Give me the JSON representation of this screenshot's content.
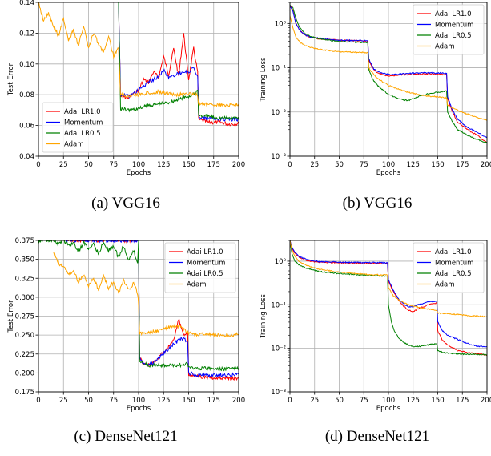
{
  "chart_data": [
    {
      "type": "line",
      "caption": "(a) VGG16",
      "xlabel": "Epochs",
      "ylabel": "Test Error",
      "xlim": [
        0,
        200
      ],
      "ylim": [
        0.04,
        0.14
      ],
      "yscale": "linear",
      "xticks": [
        "0",
        "25",
        "50",
        "75",
        "100",
        "125",
        "150",
        "175",
        "200"
      ],
      "yticks": [
        "0.04",
        "0.06",
        "0.08",
        "0.10",
        "0.12",
        "0.14"
      ],
      "grid": true,
      "legend_position": "lower-left",
      "series": [
        {
          "name": "Adai LR1.0",
          "color": "#ff0000",
          "x": [
            80,
            82,
            90,
            100,
            105,
            110,
            115,
            120,
            125,
            130,
            135,
            140,
            145,
            150,
            155,
            159,
            160,
            165,
            170,
            180,
            190,
            200
          ],
          "y": [
            0.14,
            0.079,
            0.078,
            0.083,
            0.09,
            0.088,
            0.095,
            0.091,
            0.105,
            0.093,
            0.11,
            0.092,
            0.12,
            0.09,
            0.11,
            0.095,
            0.064,
            0.063,
            0.062,
            0.062,
            0.061,
            0.061
          ]
        },
        {
          "name": "Momentum",
          "color": "#0000ff",
          "x": [
            80,
            82,
            90,
            100,
            110,
            120,
            125,
            130,
            140,
            150,
            155,
            159,
            160,
            165,
            170,
            180,
            190,
            200
          ],
          "y": [
            0.14,
            0.08,
            0.079,
            0.083,
            0.088,
            0.092,
            0.096,
            0.091,
            0.094,
            0.095,
            0.097,
            0.092,
            0.066,
            0.065,
            0.065,
            0.064,
            0.064,
            0.064
          ]
        },
        {
          "name": "Adai LR0.5",
          "color": "#008000",
          "x": [
            80,
            82,
            90,
            100,
            110,
            120,
            130,
            140,
            150,
            155,
            159,
            160,
            165,
            170,
            180,
            190,
            200
          ],
          "y": [
            0.14,
            0.071,
            0.07,
            0.071,
            0.073,
            0.074,
            0.075,
            0.077,
            0.079,
            0.08,
            0.083,
            0.067,
            0.066,
            0.066,
            0.065,
            0.065,
            0.065
          ]
        },
        {
          "name": "Adam",
          "color": "#ffa500",
          "x": [
            0,
            5,
            10,
            15,
            20,
            25,
            30,
            35,
            40,
            45,
            50,
            55,
            60,
            65,
            70,
            75,
            80,
            82,
            90,
            100,
            110,
            120,
            130,
            140,
            150,
            159,
            160,
            170,
            180,
            190,
            200
          ],
          "y": [
            0.14,
            0.128,
            0.133,
            0.125,
            0.118,
            0.13,
            0.115,
            0.122,
            0.112,
            0.125,
            0.11,
            0.12,
            0.113,
            0.108,
            0.118,
            0.105,
            0.11,
            0.08,
            0.079,
            0.08,
            0.081,
            0.082,
            0.081,
            0.08,
            0.081,
            0.08,
            0.074,
            0.074,
            0.073,
            0.073,
            0.074
          ]
        }
      ]
    },
    {
      "type": "line",
      "caption": "(b) VGG16",
      "xlabel": "Epochs",
      "ylabel": "Training Loss",
      "xlim": [
        0,
        200
      ],
      "ylim": [
        0.001,
        3
      ],
      "yscale": "log",
      "xticks": [
        "0",
        "25",
        "50",
        "75",
        "100",
        "125",
        "150",
        "175",
        "200"
      ],
      "yticks": [
        "10⁻³",
        "10⁻²",
        "10⁻¹",
        "10⁰"
      ],
      "grid": true,
      "legend_position": "top-right",
      "series": [
        {
          "name": "Adai LR1.0",
          "color": "#ff0000",
          "x": [
            0,
            3,
            6,
            10,
            15,
            20,
            30,
            50,
            79,
            80,
            85,
            90,
            100,
            110,
            120,
            130,
            140,
            150,
            159,
            160,
            165,
            170,
            180,
            190,
            200
          ],
          "y": [
            2.6,
            2.0,
            1.0,
            0.7,
            0.55,
            0.5,
            0.45,
            0.42,
            0.4,
            0.15,
            0.09,
            0.075,
            0.065,
            0.068,
            0.07,
            0.072,
            0.073,
            0.072,
            0.07,
            0.02,
            0.01,
            0.006,
            0.004,
            0.003,
            0.002
          ]
        },
        {
          "name": "Momentum",
          "color": "#0000ff",
          "x": [
            0,
            3,
            6,
            10,
            15,
            20,
            30,
            50,
            79,
            80,
            85,
            90,
            100,
            110,
            120,
            130,
            140,
            150,
            159,
            160,
            165,
            170,
            180,
            190,
            200
          ],
          "y": [
            2.5,
            1.9,
            1.0,
            0.7,
            0.55,
            0.5,
            0.46,
            0.42,
            0.41,
            0.16,
            0.095,
            0.08,
            0.07,
            0.072,
            0.075,
            0.076,
            0.077,
            0.076,
            0.075,
            0.022,
            0.011,
            0.007,
            0.0045,
            0.0035,
            0.0026
          ]
        },
        {
          "name": "Adai LR0.5",
          "color": "#008000",
          "x": [
            0,
            3,
            6,
            10,
            15,
            20,
            30,
            50,
            79,
            80,
            85,
            90,
            100,
            110,
            120,
            130,
            140,
            150,
            159,
            160,
            165,
            170,
            180,
            190,
            200
          ],
          "y": [
            2.6,
            2.3,
            1.3,
            0.8,
            0.6,
            0.52,
            0.45,
            0.39,
            0.37,
            0.09,
            0.05,
            0.038,
            0.025,
            0.02,
            0.018,
            0.022,
            0.026,
            0.028,
            0.03,
            0.01,
            0.006,
            0.004,
            0.003,
            0.0024,
            0.002
          ]
        },
        {
          "name": "Adam",
          "color": "#ffa500",
          "x": [
            0,
            3,
            6,
            10,
            15,
            20,
            30,
            50,
            79,
            80,
            85,
            90,
            100,
            110,
            120,
            130,
            140,
            150,
            159,
            160,
            170,
            180,
            190,
            200
          ],
          "y": [
            1.5,
            0.8,
            0.5,
            0.38,
            0.32,
            0.29,
            0.26,
            0.23,
            0.22,
            0.1,
            0.07,
            0.055,
            0.04,
            0.033,
            0.028,
            0.025,
            0.023,
            0.022,
            0.021,
            0.014,
            0.011,
            0.009,
            0.0075,
            0.0065
          ]
        }
      ]
    },
    {
      "type": "line",
      "caption": "(c) DenseNet121",
      "xlabel": "Epochs",
      "ylabel": "Test Error",
      "xlim": [
        0,
        200
      ],
      "ylim": [
        0.175,
        0.375
      ],
      "yscale": "linear",
      "xticks": [
        "0",
        "25",
        "50",
        "75",
        "100",
        "125",
        "150",
        "175",
        "200"
      ],
      "yticks": [
        "0.175",
        "0.200",
        "0.225",
        "0.250",
        "0.275",
        "0.300",
        "0.325",
        "0.350",
        "0.375"
      ],
      "grid": true,
      "legend_position": "top-right",
      "series": [
        {
          "name": "Adai LR1.0",
          "color": "#ff0000",
          "x": [
            28,
            100,
            101,
            105,
            110,
            115,
            120,
            125,
            130,
            135,
            140,
            145,
            149,
            150,
            155,
            160,
            170,
            180,
            190,
            200
          ],
          "y": [
            0.375,
            0.375,
            0.22,
            0.212,
            0.21,
            0.213,
            0.22,
            0.228,
            0.235,
            0.242,
            0.272,
            0.25,
            0.255,
            0.198,
            0.196,
            0.195,
            0.194,
            0.193,
            0.193,
            0.193
          ]
        },
        {
          "name": "Momentum",
          "color": "#0000ff",
          "x": [
            28,
            100,
            101,
            105,
            110,
            115,
            120,
            125,
            130,
            135,
            140,
            145,
            149,
            150,
            155,
            160,
            170,
            180,
            190,
            200
          ],
          "y": [
            0.375,
            0.375,
            0.222,
            0.212,
            0.21,
            0.214,
            0.22,
            0.226,
            0.232,
            0.238,
            0.243,
            0.246,
            0.24,
            0.2,
            0.198,
            0.197,
            0.197,
            0.197,
            0.197,
            0.198
          ]
        },
        {
          "name": "Adai LR0.5",
          "color": "#008000",
          "x": [
            0,
            15,
            20,
            25,
            30,
            35,
            40,
            45,
            50,
            55,
            60,
            65,
            70,
            75,
            80,
            85,
            90,
            95,
            99,
            100,
            101,
            110,
            120,
            130,
            140,
            149,
            150,
            160,
            170,
            180,
            190,
            200
          ],
          "y": [
            0.375,
            0.375,
            0.37,
            0.375,
            0.368,
            0.372,
            0.36,
            0.372,
            0.364,
            0.37,
            0.358,
            0.372,
            0.362,
            0.368,
            0.352,
            0.368,
            0.347,
            0.362,
            0.345,
            0.375,
            0.215,
            0.21,
            0.21,
            0.21,
            0.21,
            0.212,
            0.207,
            0.206,
            0.206,
            0.205,
            0.206,
            0.206
          ]
        },
        {
          "name": "Adam",
          "color": "#ffa500",
          "x": [
            15,
            20,
            25,
            30,
            35,
            40,
            45,
            50,
            55,
            60,
            65,
            70,
            75,
            80,
            85,
            90,
            95,
            99,
            100,
            101,
            110,
            120,
            130,
            140,
            150,
            160,
            170,
            180,
            190,
            200
          ],
          "y": [
            0.36,
            0.345,
            0.34,
            0.33,
            0.335,
            0.32,
            0.33,
            0.315,
            0.325,
            0.31,
            0.328,
            0.312,
            0.32,
            0.305,
            0.322,
            0.31,
            0.318,
            0.305,
            0.29,
            0.252,
            0.253,
            0.256,
            0.26,
            0.262,
            0.252,
            0.251,
            0.251,
            0.25,
            0.25,
            0.251
          ]
        }
      ]
    },
    {
      "type": "line",
      "caption": "(d) DenseNet121",
      "xlabel": "Epochs",
      "ylabel": "Training Loss",
      "xlim": [
        0,
        200
      ],
      "ylim": [
        0.001,
        3
      ],
      "yscale": "log",
      "xticks": [
        "0",
        "25",
        "50",
        "75",
        "100",
        "125",
        "150",
        "175",
        "200"
      ],
      "yticks": [
        "10⁻³",
        "10⁻²",
        "10⁻¹",
        "10⁰"
      ],
      "grid": true,
      "legend_position": "top-right",
      "series": [
        {
          "name": "Adai LR1.0",
          "color": "#ff0000",
          "x": [
            0,
            2,
            5,
            10,
            20,
            30,
            50,
            75,
            99,
            100,
            105,
            110,
            115,
            120,
            125,
            130,
            140,
            149,
            150,
            155,
            160,
            170,
            180,
            190,
            200
          ],
          "y": [
            3,
            2.0,
            1.5,
            1.2,
            1.0,
            0.95,
            0.92,
            0.9,
            0.88,
            0.35,
            0.2,
            0.13,
            0.095,
            0.075,
            0.07,
            0.08,
            0.1,
            0.11,
            0.025,
            0.015,
            0.012,
            0.009,
            0.008,
            0.0075,
            0.007
          ]
        },
        {
          "name": "Momentum",
          "color": "#0000ff",
          "x": [
            0,
            2,
            5,
            10,
            20,
            30,
            50,
            75,
            99,
            100,
            105,
            110,
            115,
            120,
            125,
            130,
            140,
            149,
            150,
            155,
            160,
            170,
            180,
            190,
            200
          ],
          "y": [
            3,
            2.1,
            1.6,
            1.25,
            1.05,
            0.98,
            0.95,
            0.93,
            0.92,
            0.37,
            0.21,
            0.14,
            0.105,
            0.09,
            0.09,
            0.1,
            0.115,
            0.12,
            0.04,
            0.025,
            0.02,
            0.016,
            0.013,
            0.011,
            0.011
          ]
        },
        {
          "name": "Adai LR0.5",
          "color": "#008000",
          "x": [
            0,
            2,
            5,
            10,
            20,
            30,
            50,
            75,
            99,
            100,
            103,
            106,
            110,
            115,
            120,
            125,
            130,
            140,
            149,
            150,
            155,
            160,
            170,
            180,
            190,
            200
          ],
          "y": [
            3,
            1.5,
            1.0,
            0.8,
            0.65,
            0.58,
            0.52,
            0.48,
            0.45,
            0.1,
            0.04,
            0.025,
            0.018,
            0.014,
            0.012,
            0.011,
            0.011,
            0.012,
            0.013,
            0.009,
            0.008,
            0.0078,
            0.0075,
            0.0073,
            0.0072,
            0.0072
          ]
        },
        {
          "name": "Adam",
          "color": "#ffa500",
          "x": [
            0,
            2,
            5,
            10,
            20,
            30,
            50,
            75,
            99,
            100,
            105,
            110,
            120,
            130,
            140,
            149,
            150,
            160,
            170,
            180,
            190,
            200
          ],
          "y": [
            3,
            1.8,
            1.3,
            0.95,
            0.75,
            0.65,
            0.56,
            0.5,
            0.48,
            0.25,
            0.16,
            0.13,
            0.1,
            0.088,
            0.08,
            0.075,
            0.065,
            0.062,
            0.06,
            0.057,
            0.055,
            0.053
          ]
        }
      ]
    }
  ]
}
